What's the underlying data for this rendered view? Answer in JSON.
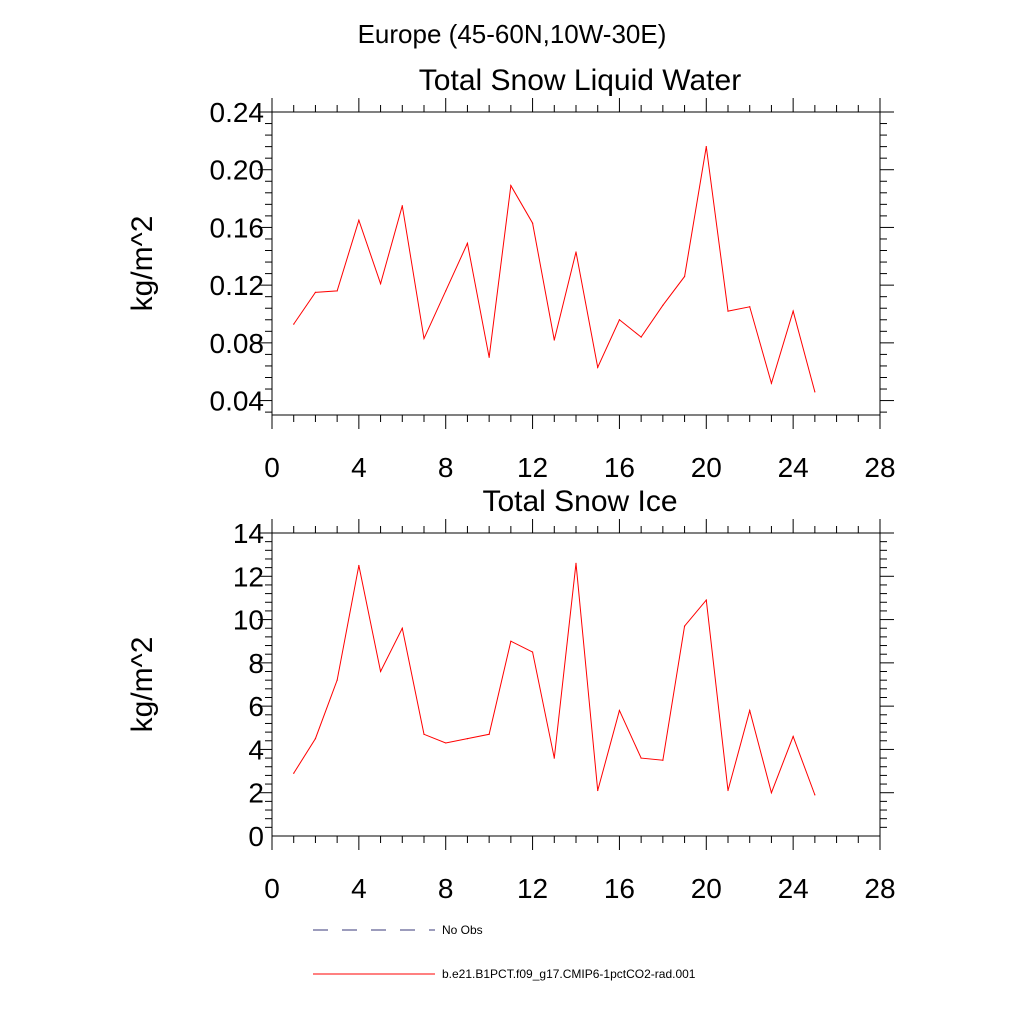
{
  "figure_title": "Europe (45-60N,10W-30E)",
  "chart_data": [
    {
      "type": "line",
      "title": "Total Snow Liquid Water",
      "xlabel": "",
      "ylabel": "kg/m^2",
      "xlim": [
        0,
        28
      ],
      "ylim": [
        0.03,
        0.24
      ],
      "xticks": [
        0,
        4,
        8,
        12,
        16,
        20,
        24,
        28
      ],
      "xtick_labels": [
        "0",
        "4",
        "8",
        "12",
        "16",
        "20",
        "24",
        "28"
      ],
      "yticks": [
        0.04,
        0.08,
        0.12,
        0.16,
        0.2,
        0.24
      ],
      "ytick_labels": [
        "0.04",
        "0.08",
        "0.12",
        "0.16",
        "0.20",
        "0.24"
      ],
      "x": [
        1,
        2,
        3,
        4,
        5,
        6,
        7,
        8,
        9,
        10,
        11,
        12,
        13,
        14,
        15,
        16,
        17,
        18,
        19,
        20,
        21,
        22,
        23,
        24,
        25
      ],
      "series": [
        {
          "name": "b.e21.B1PCT.f09_g17.CMIP6-1pctCO2-rad.001",
          "color": "#ff0000",
          "values": [
            0.093,
            0.115,
            0.116,
            0.165,
            0.121,
            0.175,
            0.083,
            0.116,
            0.149,
            0.07,
            0.189,
            0.163,
            0.082,
            0.143,
            0.063,
            0.096,
            0.084,
            0.106,
            0.126,
            0.216,
            0.102,
            0.105,
            0.052,
            0.102,
            0.046
          ]
        }
      ]
    },
    {
      "type": "line",
      "title": "Total Snow Ice",
      "xlabel": "",
      "ylabel": "kg/m^2",
      "xlim": [
        0,
        28
      ],
      "ylim": [
        0,
        14
      ],
      "xticks": [
        0,
        4,
        8,
        12,
        16,
        20,
        24,
        28
      ],
      "xtick_labels": [
        "0",
        "4",
        "8",
        "12",
        "16",
        "20",
        "24",
        "28"
      ],
      "yticks": [
        0,
        2,
        4,
        6,
        8,
        10,
        12,
        14
      ],
      "ytick_labels": [
        "0",
        "2",
        "4",
        "6",
        "8",
        "10",
        "12",
        "14"
      ],
      "x": [
        1,
        2,
        3,
        4,
        5,
        6,
        7,
        8,
        9,
        10,
        11,
        12,
        13,
        14,
        15,
        16,
        17,
        18,
        19,
        20,
        21,
        22,
        23,
        24,
        25
      ],
      "series": [
        {
          "name": "b.e21.B1PCT.f09_g17.CMIP6-1pctCO2-rad.001",
          "color": "#ff0000",
          "values": [
            2.9,
            4.5,
            7.2,
            12.5,
            7.6,
            9.6,
            4.7,
            4.3,
            4.5,
            4.7,
            9.0,
            8.5,
            3.6,
            12.6,
            2.1,
            5.8,
            3.6,
            3.5,
            9.7,
            10.9,
            2.1,
            5.8,
            2.0,
            4.6,
            1.9
          ]
        }
      ]
    }
  ],
  "legend": {
    "placement": "bottom",
    "items": [
      {
        "label": "No Obs",
        "style": "dashed",
        "color": "#3a3a7a"
      },
      {
        "label": "b.e21.B1PCT.f09_g17.CMIP6-1pctCO2-rad.001",
        "style": "solid",
        "color": "#ff0000"
      }
    ]
  }
}
